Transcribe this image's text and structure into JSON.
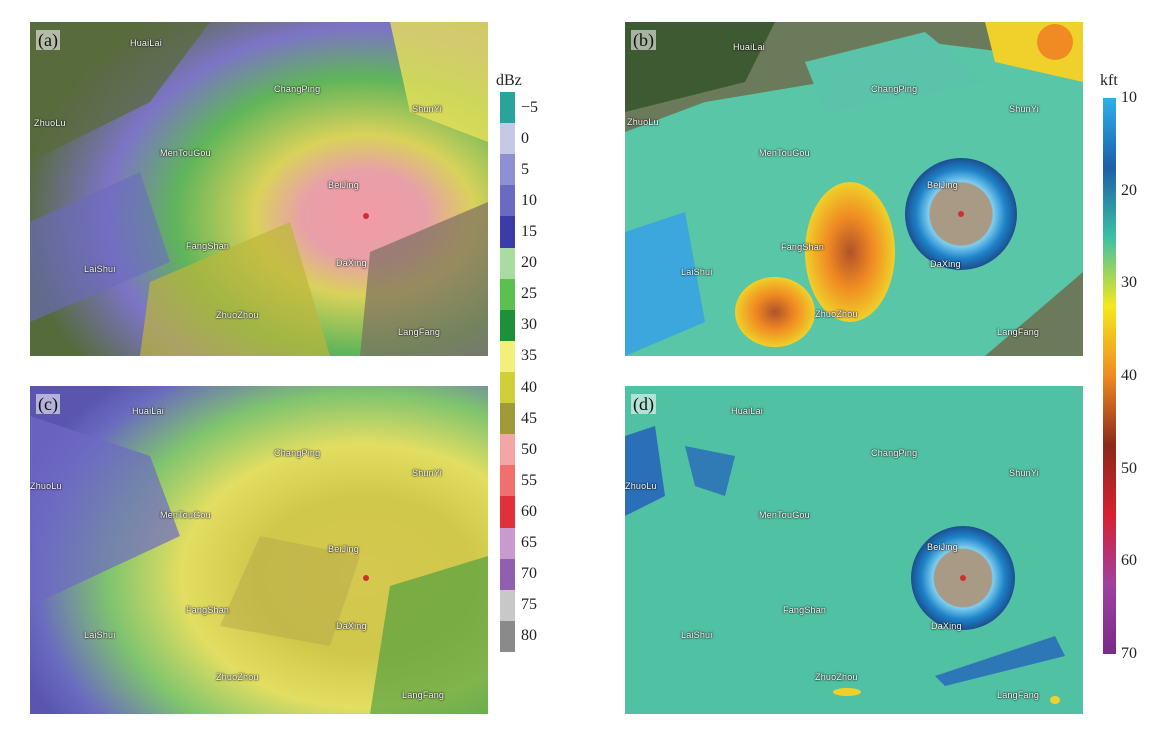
{
  "panels": [
    {
      "label": "(a)",
      "cities": [
        "HuaiLai",
        "ChangPing",
        "ShunYi",
        "ZhuoLu",
        "MenTouGou",
        "BeiJing",
        "FangShan",
        "DaXing",
        "LaiShui",
        "ZhuoZhou",
        "LangFang"
      ]
    },
    {
      "label": "(b)",
      "cities": [
        "HuaiLai",
        "ChangPing",
        "ShunYi",
        "ZhuoLu",
        "MenTouGou",
        "BeiJing",
        "FangShan",
        "DaXing",
        "LaiShui",
        "ZhuoZhou",
        "LangFang"
      ]
    },
    {
      "label": "(c)",
      "cities": [
        "HuaiLai",
        "ChangPing",
        "ShunYi",
        "ZhuoLu",
        "MenTouGou",
        "BeiJing",
        "FangShan",
        "DaXing",
        "LaiShui",
        "ZhuoZhou",
        "LangFang"
      ]
    },
    {
      "label": "(d)",
      "cities": [
        "HuaiLai",
        "ChangPing",
        "ShunYi",
        "ZhuoLu",
        "MenTouGou",
        "BeiJing",
        "FangShan",
        "DaXing",
        "LaiShui",
        "ZhuoZhou",
        "LangFang"
      ]
    }
  ],
  "dbz_scale": {
    "unit": "dBz",
    "ticks": [
      "−5",
      "0",
      "5",
      "10",
      "15",
      "20",
      "25",
      "30",
      "35",
      "40",
      "45",
      "50",
      "55",
      "60",
      "65",
      "70",
      "75",
      "80"
    ],
    "colors": [
      "#2aa39a",
      "#c7c7e6",
      "#8f8fd4",
      "#6a6ac0",
      "#3c3ca8",
      "#a9dca0",
      "#5cbf52",
      "#1f8f3a",
      "#f1f07a",
      "#cfcf3a",
      "#9f9a3a",
      "#f4a6a6",
      "#f07070",
      "#e0303a",
      "#c89ad0",
      "#9060b0",
      "#c8c8c8",
      "#8a8a8a"
    ]
  },
  "kft_scale": {
    "unit": "kft",
    "ticks": [
      "10",
      "20",
      "30",
      "40",
      "50",
      "60",
      "70"
    ],
    "stops": [
      "#2fb0ea",
      "#1b5fa8",
      "#3bc0a4",
      "#f5e81c",
      "#f08a22",
      "#8a2a1a",
      "#d82030",
      "#a040a0",
      "#7a2a8a"
    ]
  }
}
